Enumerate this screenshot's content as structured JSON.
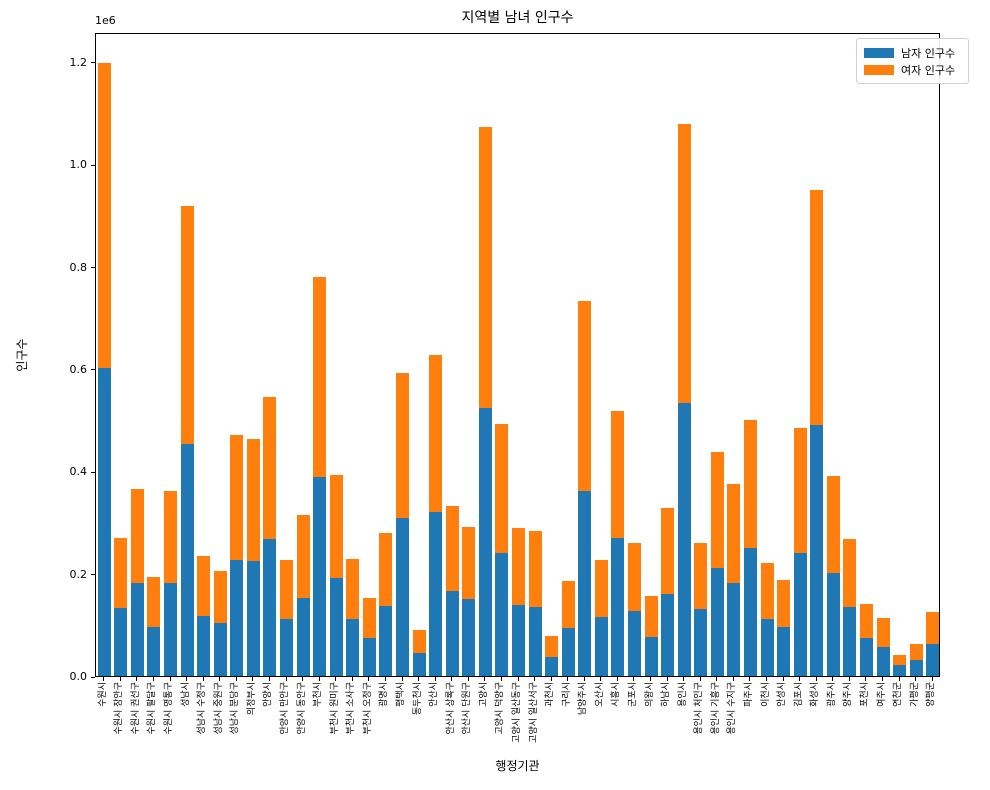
{
  "title": "지역별 남녀 인구수",
  "axes": {
    "offset_label": "1e6",
    "ylabel": "인구수",
    "xlabel": "행정기관",
    "ytick_labels": [
      "0.0",
      "0.2",
      "0.4",
      "0.6",
      "0.8",
      "1.0",
      "1.2"
    ]
  },
  "legend": {
    "items": [
      {
        "label": "남자 인구수",
        "color": "#1f77b4"
      },
      {
        "label": "여자 인구수",
        "color": "#ff7f0e"
      }
    ]
  },
  "chart_data": {
    "type": "bar",
    "stacked": true,
    "title": "지역별 남녀 인구수",
    "xlabel": "행정기관",
    "ylabel": "인구수",
    "grid": false,
    "legend_position": "upper right",
    "ylim": [
      0,
      1258500
    ],
    "yticks": [
      0,
      200000,
      400000,
      600000,
      800000,
      1000000,
      1200000
    ],
    "categories": [
      "수원시",
      "수원시 장안구",
      "수원시 권선구",
      "수원시 팔달구",
      "수원시 영통구",
      "성남시",
      "성남시 수정구",
      "성남시 중원구",
      "성남시 분당구",
      "의정부시",
      "안양시",
      "안양시 만안구",
      "안양시 동안구",
      "부천시",
      "부천시 원미구",
      "부천시 소사구",
      "부천시 오정구",
      "광명시",
      "평택시",
      "동두천시",
      "안산시",
      "안산시 상록구",
      "안산시 단원구",
      "고양시",
      "고양시 덕양구",
      "고양시 일산동구",
      "고양시 일산서구",
      "과천시",
      "구리시",
      "남양주시",
      "오산시",
      "시흥시",
      "군포시",
      "의왕시",
      "하남시",
      "용인시",
      "용인시 처인구",
      "용인시 기흥구",
      "용인시 수지구",
      "파주시",
      "이천시",
      "안성시",
      "김포시",
      "화성시",
      "광주시",
      "양주시",
      "포천시",
      "여주시",
      "연천군",
      "가평군",
      "양평군"
    ],
    "series": [
      {
        "name": "남자 인구수",
        "color": "#1f77b4",
        "values": [
          602000,
          132000,
          182000,
          96000,
          181000,
          453000,
          118000,
          104000,
          226000,
          225000,
          267000,
          112000,
          153000,
          388000,
          192000,
          111000,
          75000,
          136000,
          308000,
          44000,
          321000,
          167000,
          150000,
          523000,
          240000,
          139000,
          135000,
          37000,
          94000,
          362000,
          115000,
          270000,
          127000,
          77000,
          161000,
          533000,
          130000,
          212000,
          182000,
          251000,
          112000,
          96000,
          240000,
          490000,
          202000,
          134000,
          74000,
          57000,
          21000,
          31000,
          63000
        ]
      },
      {
        "name": "여자 인구수",
        "color": "#ff7f0e",
        "values": [
          595000,
          137000,
          184000,
          97000,
          181000,
          466000,
          117000,
          102000,
          245000,
          238000,
          279000,
          115000,
          162000,
          391000,
          200000,
          117000,
          78000,
          143000,
          285000,
          45000,
          307000,
          165000,
          142000,
          549000,
          253000,
          150000,
          149000,
          41000,
          91000,
          371000,
          111000,
          247000,
          132000,
          80000,
          167000,
          545000,
          129000,
          225000,
          194000,
          249000,
          108000,
          92000,
          244000,
          460000,
          188000,
          133000,
          67000,
          56000,
          20000,
          31000,
          62000
        ]
      }
    ]
  }
}
